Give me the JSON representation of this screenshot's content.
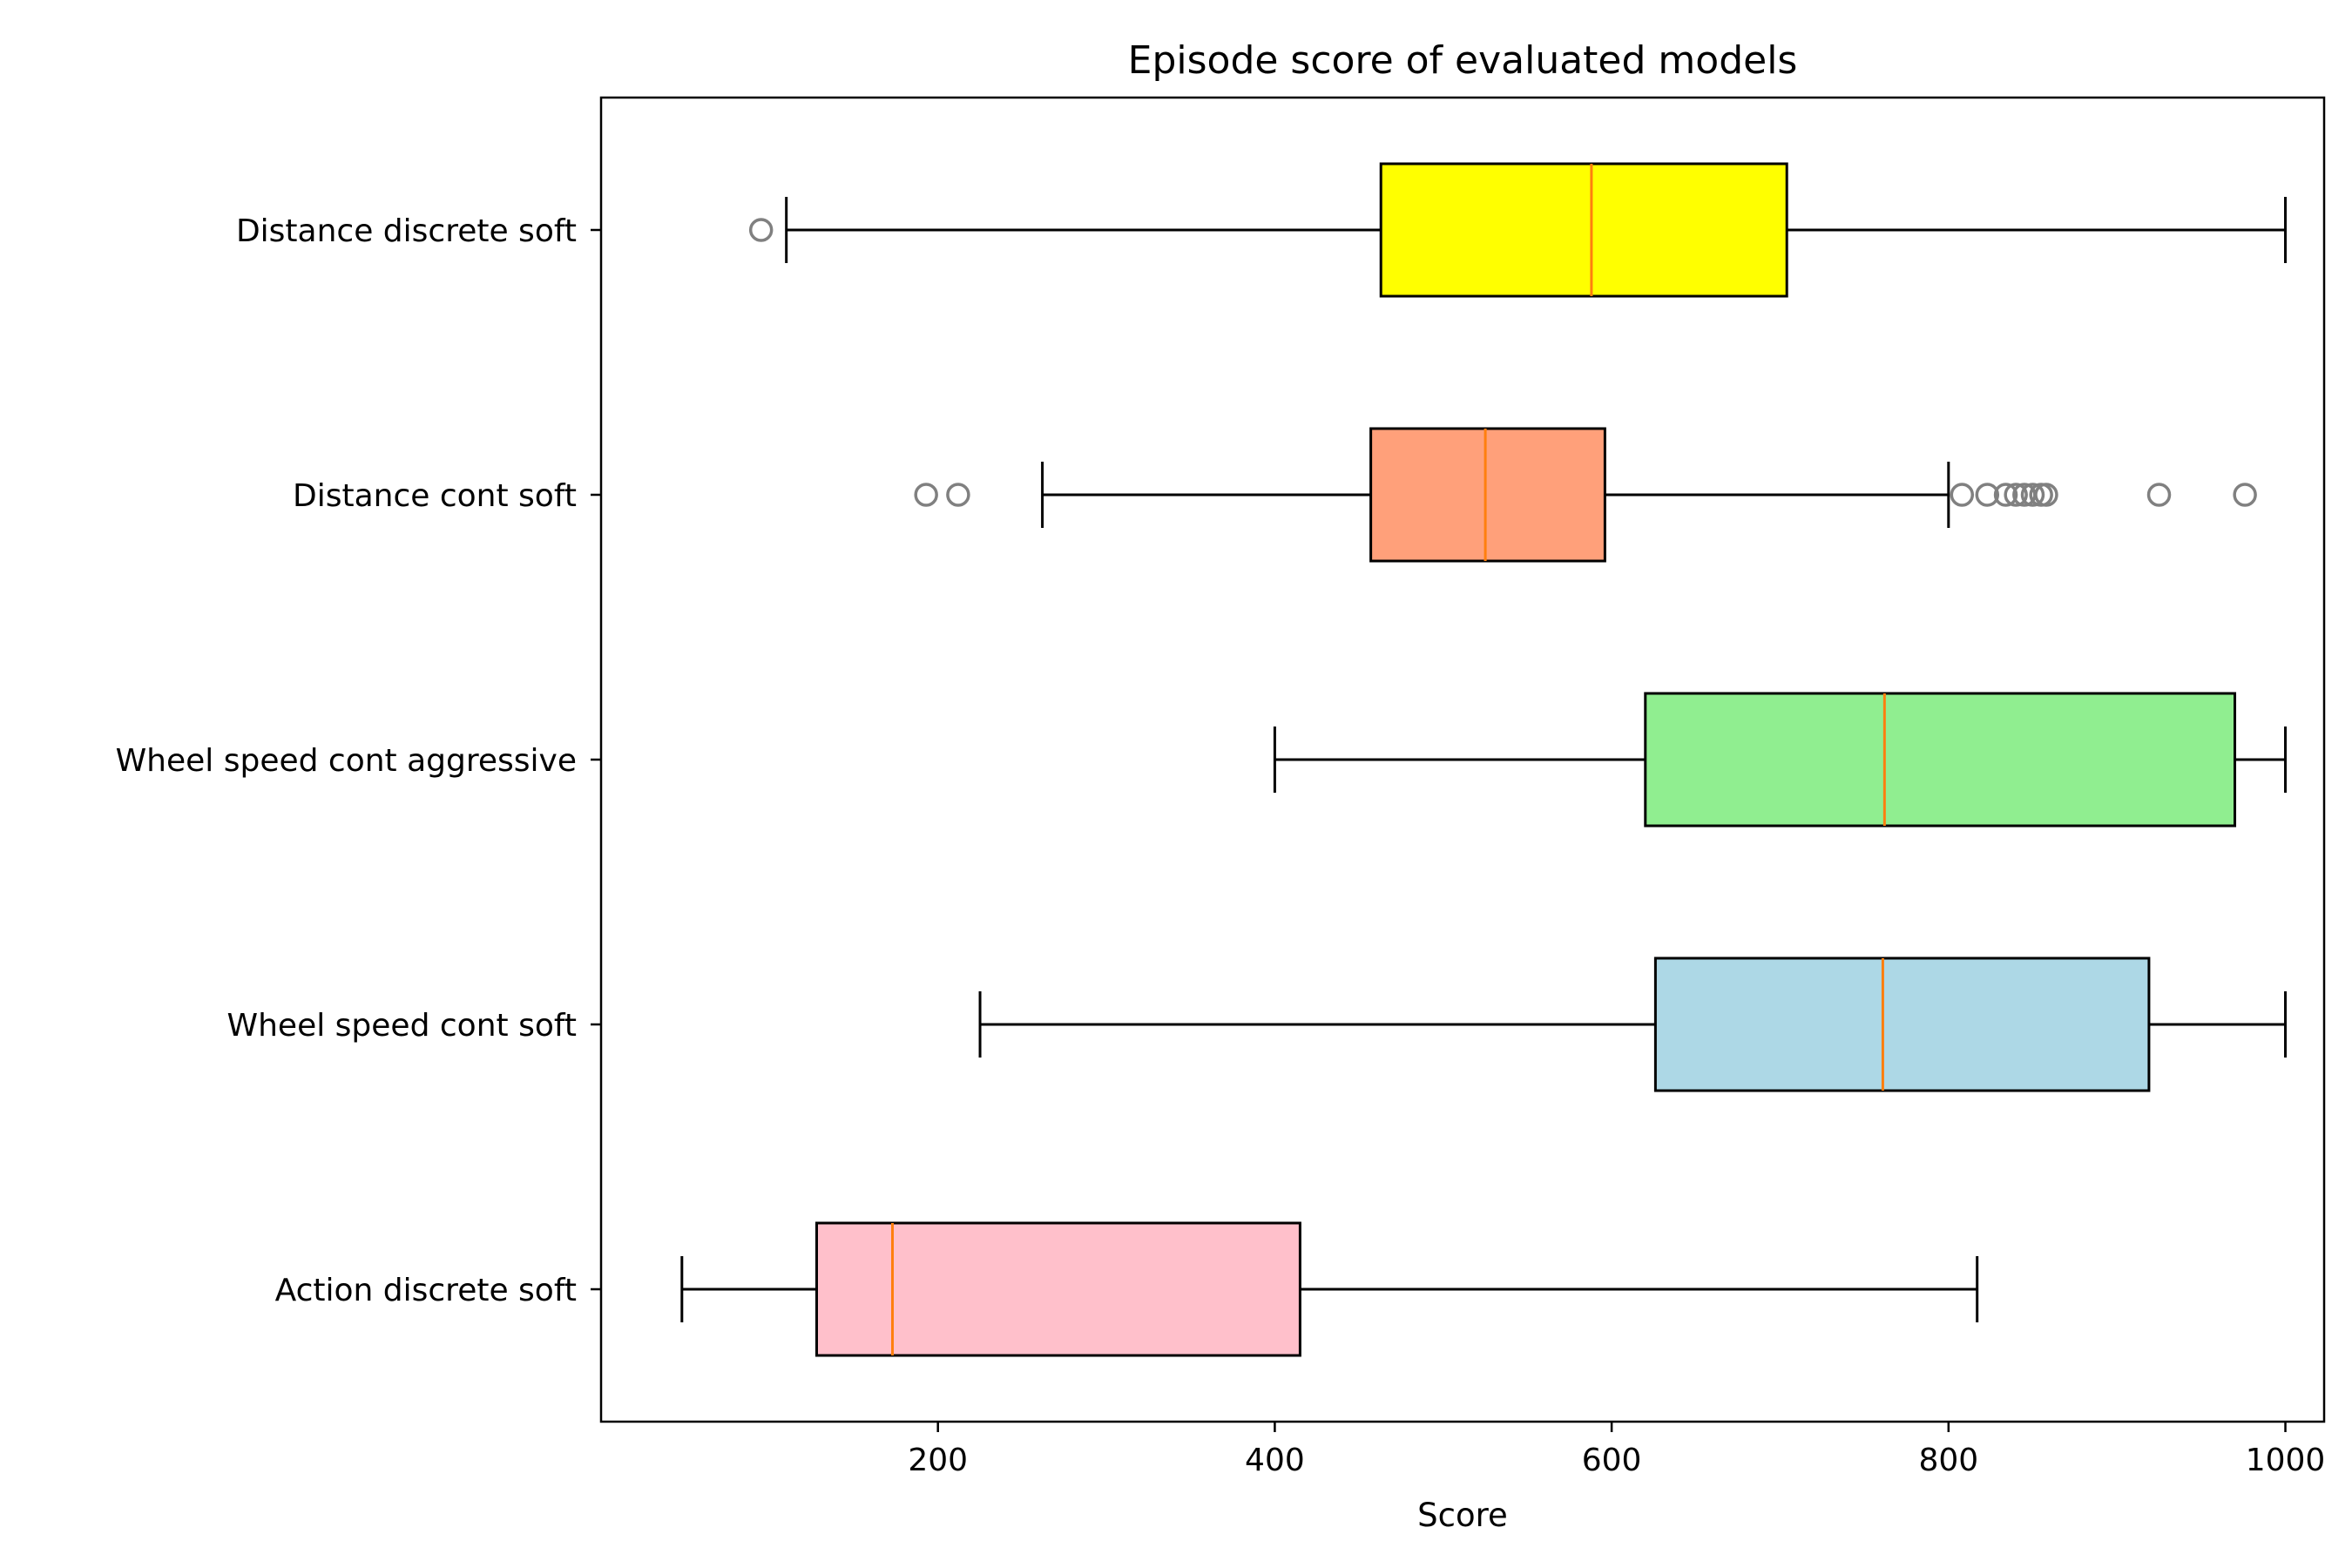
{
  "chart_data": {
    "type": "boxplot",
    "orientation": "horizontal",
    "title": "Episode score of evaluated models",
    "xlabel": "Score",
    "ylabel": "",
    "xlim": [
      0,
      1023
    ],
    "xticks": [
      200,
      400,
      600,
      800,
      1000
    ],
    "grid": false,
    "legend": "none",
    "series": [
      {
        "name": "Distance discrete soft",
        "color": "#ffff00",
        "whisker_low": 110,
        "q1": 463,
        "median": 588,
        "q3": 704,
        "whisker_high": 1000,
        "outliers": [
          95
        ]
      },
      {
        "name": "Distance cont soft",
        "color": "#ffa07a",
        "whisker_low": 262,
        "q1": 457,
        "median": 525,
        "q3": 596,
        "whisker_high": 800,
        "outliers": [
          193,
          212,
          808,
          823,
          834,
          840,
          845,
          850,
          855,
          858,
          925,
          976
        ]
      },
      {
        "name": "Wheel speed cont aggressive",
        "color": "#90ee90",
        "whisker_low": 400,
        "q1": 620,
        "median": 762,
        "q3": 970,
        "whisker_high": 1000,
        "outliers": []
      },
      {
        "name": "Wheel speed cont soft",
        "color": "#add8e6",
        "whisker_low": 225,
        "q1": 626,
        "median": 761,
        "q3": 919,
        "whisker_high": 1000,
        "outliers": []
      },
      {
        "name": "Action discrete soft",
        "color": "#ffc0cb",
        "whisker_low": 48,
        "q1": 128,
        "median": 173,
        "q3": 415,
        "whisker_high": 817,
        "outliers": []
      }
    ],
    "median_color": "#ff7f0e",
    "outlier_color": "#808080"
  }
}
